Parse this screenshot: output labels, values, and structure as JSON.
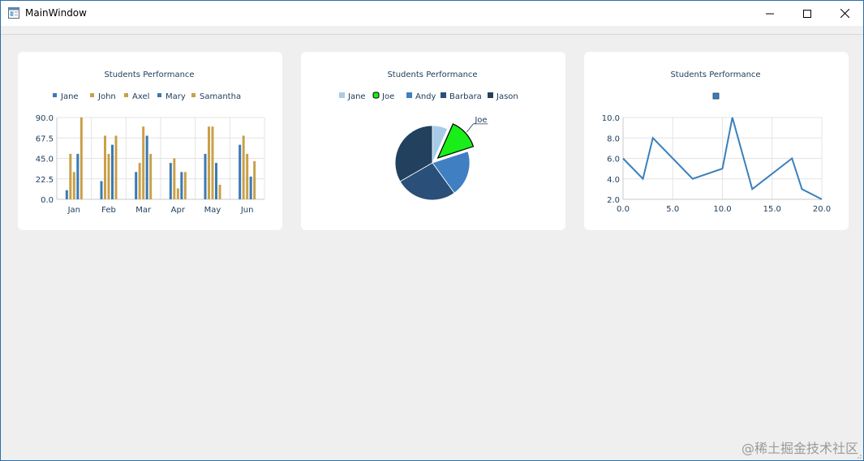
{
  "window": {
    "title": "MainWindow",
    "controls": {
      "minimize": "minimize-icon",
      "maximize": "maximize-icon",
      "close": "close-icon"
    }
  },
  "watermark": "@稀土掘金技术社区",
  "colors": {
    "jane": "#3a7ab3",
    "john": "#c9a04a",
    "axel": "#c9a04a",
    "mary": "#3a7ab3",
    "samantha": "#c9a04a",
    "pie_jane": "#a8cce8",
    "pie_joe": "#19ee19",
    "pie_andy": "#3f7fc2",
    "pie_barbara": "#2a4f78",
    "pie_jason": "#22415e",
    "line": "#3a80bb"
  },
  "chart_data": [
    {
      "type": "bar",
      "title": "Students Performance",
      "categories": [
        "Jan",
        "Feb",
        "Mar",
        "Apr",
        "May",
        "Jun"
      ],
      "series": [
        {
          "name": "Jane",
          "values": [
            10,
            20,
            30,
            40,
            50,
            60
          ]
        },
        {
          "name": "John",
          "values": [
            50,
            70,
            40,
            45,
            80,
            70
          ]
        },
        {
          "name": "Axel",
          "values": [
            30,
            50,
            80,
            12,
            80,
            50
          ]
        },
        {
          "name": "Mary",
          "values": [
            50,
            60,
            70,
            30,
            40,
            25
          ]
        },
        {
          "name": "Samantha",
          "values": [
            90,
            70,
            50,
            30,
            16,
            42
          ]
        }
      ],
      "yticks": [
        "90.0",
        "67.5",
        "45.0",
        "22.5",
        "0.0"
      ],
      "ylim": [
        0,
        90
      ],
      "legend": "top",
      "grid": true
    },
    {
      "type": "pie",
      "title": "Students Performance",
      "slices": [
        {
          "name": "Jane",
          "value": 1
        },
        {
          "name": "Joe",
          "value": 2,
          "exploded": true,
          "label": "Joe"
        },
        {
          "name": "Andy",
          "value": 3
        },
        {
          "name": "Barbara",
          "value": 4
        },
        {
          "name": "Jason",
          "value": 5
        }
      ],
      "legend": "top"
    },
    {
      "type": "line",
      "title": "Students Performance",
      "points": [
        [
          0,
          6
        ],
        [
          2,
          4
        ],
        [
          3,
          8
        ],
        [
          7,
          4
        ],
        [
          10,
          5
        ],
        [
          11,
          10
        ],
        [
          13,
          3
        ],
        [
          17,
          6
        ],
        [
          18,
          3
        ],
        [
          20,
          2
        ]
      ],
      "xlim": [
        0,
        20
      ],
      "ylim": [
        2,
        10
      ],
      "xticks": [
        "0.0",
        "5.0",
        "10.0",
        "15.0",
        "20.0"
      ],
      "yticks": [
        "10.0",
        "8.0",
        "6.0",
        "4.0",
        "2.0"
      ],
      "legend": "top",
      "grid": true
    }
  ]
}
